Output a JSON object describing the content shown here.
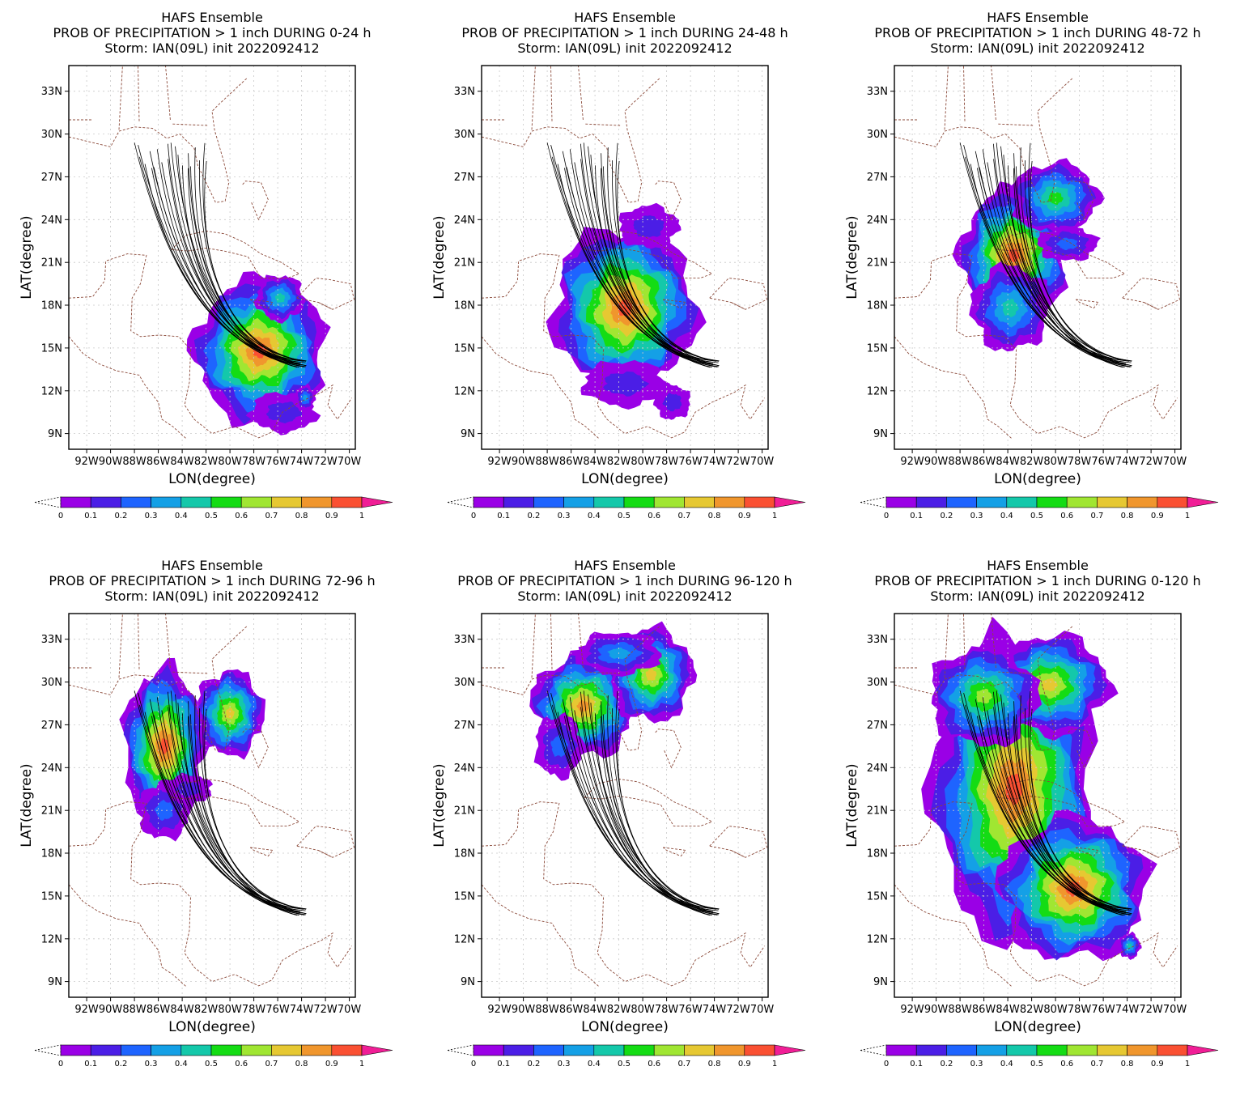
{
  "figure": {
    "title_line1": "HAFS Ensemble",
    "storm_line": "Storm: IAN(09L) init 2022092412",
    "xlabel": "LON(degree)",
    "ylabel": "LAT(degree)"
  },
  "colors": {
    "coast": "#8b4a3a",
    "grid": "#c8c8c8",
    "track": "#000000",
    "colorbar": [
      "#9a00e6",
      "#4b1ee6",
      "#1e64ff",
      "#14a0e6",
      "#14c8aa",
      "#14dc14",
      "#a0e632",
      "#e6c832",
      "#f0962d",
      "#fa5032",
      "#f01e96"
    ]
  },
  "chart_data": [
    {
      "type": "heatmap",
      "title": [
        "HAFS Ensemble",
        "PROB OF PRECIPITATION > 1 inch DURING  0-24 h",
        "Storm: IAN(09L) init 2022092412"
      ],
      "xlabel": "LON(degree)",
      "ylabel": "LAT(degree)",
      "xlim": [
        -93.5,
        -69.5
      ],
      "ylim": [
        7.9,
        34.8
      ],
      "xticks": [
        "92W",
        "90W",
        "88W",
        "86W",
        "84W",
        "82W",
        "80W",
        "78W",
        "76W",
        "74W",
        "72W",
        "70W"
      ],
      "yticks": [
        "9N",
        "12N",
        "15N",
        "18N",
        "21N",
        "24N",
        "27N",
        "30N",
        "33N"
      ],
      "colorbar_ticks": [
        "0",
        "0.1",
        "0.2",
        "0.3",
        "0.4",
        "0.5",
        "0.6",
        "0.7",
        "0.8",
        "0.9",
        "1"
      ],
      "grid": true,
      "blobs": [
        {
          "lon": -77.5,
          "lat": 14.8,
          "rlon": 5.5,
          "rlat": 5.0,
          "peak": 1.0
        },
        {
          "lon": -75.8,
          "lat": 18.5,
          "rlon": 2.0,
          "rlat": 1.6,
          "peak": 0.45
        },
        {
          "lon": -75.5,
          "lat": 10.5,
          "rlon": 2.8,
          "rlat": 1.4,
          "peak": 0.2
        },
        {
          "lon": -73.7,
          "lat": 11.5,
          "rlon": 0.8,
          "rlat": 0.9,
          "peak": 0.4
        }
      ]
    },
    {
      "type": "heatmap",
      "title": [
        "HAFS Ensemble",
        "PROB OF PRECIPITATION > 1 inch DURING 24-48 h",
        "Storm: IAN(09L) init 2022092412"
      ],
      "xlabel": "LON(degree)",
      "ylabel": "LAT(degree)",
      "xlim": [
        -93.5,
        -69.5
      ],
      "ylim": [
        7.9,
        34.8
      ],
      "xticks": [
        "92W",
        "90W",
        "88W",
        "86W",
        "84W",
        "82W",
        "80W",
        "78W",
        "76W",
        "74W",
        "72W",
        "70W"
      ],
      "yticks": [
        "9N",
        "12N",
        "15N",
        "18N",
        "21N",
        "24N",
        "27N",
        "30N",
        "33N"
      ],
      "colorbar_ticks": [
        "0",
        "0.1",
        "0.2",
        "0.3",
        "0.4",
        "0.5",
        "0.6",
        "0.7",
        "0.8",
        "0.9",
        "1"
      ],
      "grid": true,
      "blobs": [
        {
          "lon": -81.5,
          "lat": 17.8,
          "rlon": 6.0,
          "rlat": 5.8,
          "peak": 1.0
        },
        {
          "lon": -79.5,
          "lat": 23.5,
          "rlon": 2.5,
          "rlat": 1.5,
          "peak": 0.2
        },
        {
          "lon": -81.5,
          "lat": 12.5,
          "rlon": 3.5,
          "rlat": 1.6,
          "peak": 0.2
        },
        {
          "lon": -77.5,
          "lat": 11.2,
          "rlon": 1.5,
          "rlat": 1.2,
          "peak": 0.15
        }
      ]
    },
    {
      "type": "heatmap",
      "title": [
        "HAFS Ensemble",
        "PROB OF PRECIPITATION > 1 inch DURING 48-72 h",
        "Storm: IAN(09L) init 2022092412"
      ],
      "xlabel": "LON(degree)",
      "ylabel": "LAT(degree)",
      "xlim": [
        -93.5,
        -69.5
      ],
      "ylim": [
        7.9,
        34.8
      ],
      "xticks": [
        "92W",
        "90W",
        "88W",
        "86W",
        "84W",
        "82W",
        "80W",
        "78W",
        "76W",
        "74W",
        "72W",
        "70W"
      ],
      "yticks": [
        "9N",
        "12N",
        "15N",
        "18N",
        "21N",
        "24N",
        "27N",
        "30N",
        "33N"
      ],
      "colorbar_ticks": [
        "0",
        "0.1",
        "0.2",
        "0.3",
        "0.4",
        "0.5",
        "0.6",
        "0.7",
        "0.8",
        "0.9",
        "1"
      ],
      "grid": true,
      "blobs": [
        {
          "lon": -83.5,
          "lat": 21.5,
          "rlon": 4.5,
          "rlat": 4.6,
          "peak": 1.0
        },
        {
          "lon": -83.8,
          "lat": 17.8,
          "rlon": 3.2,
          "rlat": 3.0,
          "peak": 0.5
        },
        {
          "lon": -80.0,
          "lat": 25.5,
          "rlon": 3.6,
          "rlat": 2.5,
          "peak": 0.6
        },
        {
          "lon": -79.0,
          "lat": 22.3,
          "rlon": 2.5,
          "rlat": 1.2,
          "peak": 0.3
        }
      ]
    },
    {
      "type": "heatmap",
      "title": [
        "HAFS Ensemble",
        "PROB OF PRECIPITATION > 1 inch DURING 72-96 h",
        "Storm: IAN(09L) init 2022092412"
      ],
      "xlabel": "LON(degree)",
      "ylabel": "LAT(degree)",
      "xlim": [
        -93.5,
        -69.5
      ],
      "ylim": [
        7.9,
        34.8
      ],
      "xticks": [
        "92W",
        "90W",
        "88W",
        "86W",
        "84W",
        "82W",
        "80W",
        "78W",
        "76W",
        "74W",
        "72W",
        "70W"
      ],
      "yticks": [
        "9N",
        "12N",
        "15N",
        "18N",
        "21N",
        "24N",
        "27N",
        "30N",
        "33N"
      ],
      "colorbar_ticks": [
        "0",
        "0.1",
        "0.2",
        "0.3",
        "0.4",
        "0.5",
        "0.6",
        "0.7",
        "0.8",
        "0.9",
        "1"
      ],
      "grid": true,
      "blobs": [
        {
          "lon": -85.5,
          "lat": 25.5,
          "rlon": 3.4,
          "rlat": 5.5,
          "peak": 1.0
        },
        {
          "lon": -85.5,
          "lat": 21.0,
          "rlon": 2.2,
          "rlat": 2.0,
          "peak": 0.3
        },
        {
          "lon": -80.0,
          "lat": 27.8,
          "rlon": 2.8,
          "rlat": 3.0,
          "peak": 0.75
        },
        {
          "lon": -83.5,
          "lat": 22.5,
          "rlon": 2.0,
          "rlat": 1.0,
          "peak": 0.15
        }
      ]
    },
    {
      "type": "heatmap",
      "title": [
        "HAFS Ensemble",
        "PROB OF PRECIPITATION > 1 inch DURING 96-120 h",
        "Storm: IAN(09L) init 2022092412"
      ],
      "xlabel": "LON(degree)",
      "ylabel": "LAT(degree)",
      "xlim": [
        -93.5,
        -69.5
      ],
      "ylim": [
        7.9,
        34.8
      ],
      "xticks": [
        "92W",
        "90W",
        "88W",
        "86W",
        "84W",
        "82W",
        "80W",
        "78W",
        "76W",
        "74W",
        "72W",
        "70W"
      ],
      "yticks": [
        "9N",
        "12N",
        "15N",
        "18N",
        "21N",
        "24N",
        "27N",
        "30N",
        "33N"
      ],
      "colorbar_ticks": [
        "0",
        "0.1",
        "0.2",
        "0.3",
        "0.4",
        "0.5",
        "0.6",
        "0.7",
        "0.8",
        "0.9",
        "1"
      ],
      "grid": true,
      "blobs": [
        {
          "lon": -85.0,
          "lat": 28.3,
          "rlon": 4.3,
          "rlat": 3.6,
          "peak": 0.85
        },
        {
          "lon": -79.3,
          "lat": 30.5,
          "rlon": 3.5,
          "rlat": 3.3,
          "peak": 0.8
        },
        {
          "lon": -87.0,
          "lat": 25.5,
          "rlon": 2.0,
          "rlat": 2.2,
          "peak": 0.3
        },
        {
          "lon": -82.0,
          "lat": 32.0,
          "rlon": 3.5,
          "rlat": 1.5,
          "peak": 0.35
        }
      ]
    },
    {
      "type": "heatmap",
      "title": [
        "HAFS Ensemble",
        "PROB OF PRECIPITATION > 1 inch DURING 0-120 h",
        "Storm: IAN(09L) init 2022092412"
      ],
      "xlabel": "LON(degree)",
      "ylabel": "LAT(degree)",
      "xlim": [
        -93.5,
        -69.5
      ],
      "ylim": [
        7.9,
        34.8
      ],
      "xticks": [
        "92W",
        "90W",
        "88W",
        "86W",
        "84W",
        "82W",
        "80W",
        "78W",
        "76W",
        "74W",
        "72W",
        "70W"
      ],
      "yticks": [
        "9N",
        "12N",
        "15N",
        "18N",
        "21N",
        "24N",
        "27N",
        "30N",
        "33N"
      ],
      "colorbar_ticks": [
        "0",
        "0.1",
        "0.2",
        "0.3",
        "0.4",
        "0.5",
        "0.6",
        "0.7",
        "0.8",
        "0.9",
        "1"
      ],
      "grid": true,
      "blobs": [
        {
          "lon": -83.5,
          "lat": 22.5,
          "rlon": 6.8,
          "rlat": 10.5,
          "peak": 1.0
        },
        {
          "lon": -78.5,
          "lat": 15.5,
          "rlon": 6.2,
          "rlat": 5.0,
          "peak": 1.0
        },
        {
          "lon": -80.5,
          "lat": 29.8,
          "rlon": 5.0,
          "rlat": 3.5,
          "peak": 0.8
        },
        {
          "lon": -86.0,
          "lat": 29.0,
          "rlon": 4.5,
          "rlat": 3.5,
          "peak": 0.7
        },
        {
          "lon": -73.8,
          "lat": 11.5,
          "rlon": 0.9,
          "rlat": 0.9,
          "peak": 0.45
        }
      ]
    }
  ]
}
